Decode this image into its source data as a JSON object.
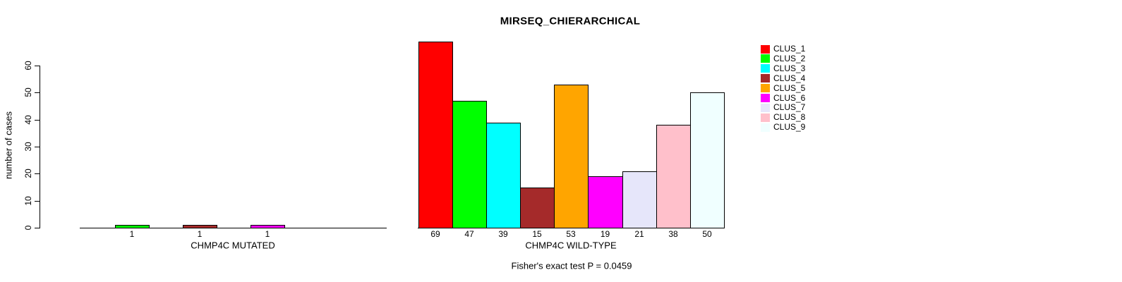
{
  "chart_data": {
    "type": "bar",
    "title": "MIRSEQ_CHIERARCHICAL",
    "ylabel": "number of cases",
    "xlabel": "",
    "footnote": "Fisher's exact test P = 0.0459",
    "ylim": [
      0,
      69
    ],
    "yticks": [
      0,
      10,
      20,
      30,
      40,
      50,
      60
    ],
    "grid": false,
    "legend_position": "right",
    "categories": [
      "CLUS_1",
      "CLUS_2",
      "CLUS_3",
      "CLUS_4",
      "CLUS_5",
      "CLUS_6",
      "CLUS_7",
      "CLUS_8",
      "CLUS_9"
    ],
    "colors": [
      "#FF0000",
      "#00FF00",
      "#00FFFF",
      "#A52A2A",
      "#FFA500",
      "#FF00FF",
      "#E6E6FA",
      "#FFC0CB",
      "#F0FFFF"
    ],
    "groups": [
      {
        "label": "CHMP4C MUTATED",
        "values": [
          0,
          1,
          0,
          1,
          0,
          1,
          0,
          0,
          0
        ],
        "bar_labels": [
          "",
          "1",
          "",
          "1",
          "",
          "1",
          "",
          "",
          ""
        ]
      },
      {
        "label": "CHMP4C WILD-TYPE",
        "values": [
          69,
          47,
          39,
          15,
          53,
          19,
          21,
          38,
          50
        ],
        "bar_labels": [
          "69",
          "47",
          "39",
          "15",
          "53",
          "19",
          "21",
          "38",
          "50"
        ]
      }
    ]
  }
}
